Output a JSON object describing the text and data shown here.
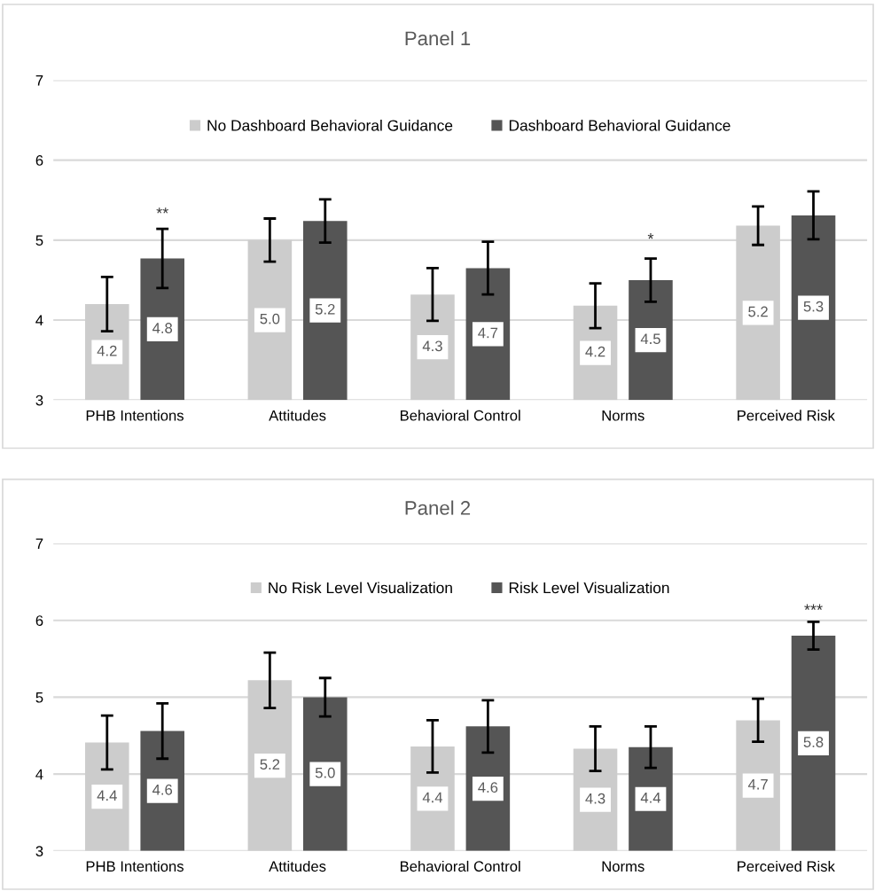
{
  "chart_data": [
    {
      "type": "bar",
      "title": "Panel 1",
      "categories": [
        "PHB Intentions",
        "Attitudes",
        "Behavioral Control",
        "Norms",
        "Perceived Risk"
      ],
      "series": [
        {
          "name": "No Dashboard Behavioral Guidance",
          "color": "#cccccc",
          "values": [
            4.2,
            5.0,
            4.32,
            4.18,
            5.18
          ],
          "errors": [
            0.34,
            0.27,
            0.33,
            0.28,
            0.24
          ],
          "value_labels": [
            "4.2",
            "5.0",
            "4.3",
            "4.2",
            "5.2"
          ]
        },
        {
          "name": "Dashboard Behavioral Guidance",
          "color": "#555555",
          "values": [
            4.77,
            5.24,
            4.65,
            4.5,
            5.31
          ],
          "errors": [
            0.37,
            0.27,
            0.33,
            0.27,
            0.3
          ],
          "value_labels": [
            "4.8",
            "5.2",
            "4.7",
            "4.5",
            "5.3"
          ]
        }
      ],
      "ylim": [
        3,
        7
      ],
      "yticks": [
        3,
        4,
        5,
        6,
        7
      ],
      "grid": "y",
      "legend": "top",
      "annotations": [
        "**",
        "*"
      ]
    },
    {
      "type": "bar",
      "title": "Panel 2",
      "categories": [
        "PHB Intentions",
        "Attitudes",
        "Behavioral Control",
        "Norms",
        "Perceived Risk"
      ],
      "series": [
        {
          "name": "No Risk Level Visualization",
          "color": "#cccccc",
          "values": [
            4.41,
            5.22,
            4.36,
            4.33,
            4.7
          ],
          "errors": [
            0.35,
            0.36,
            0.34,
            0.29,
            0.28
          ],
          "value_labels": [
            "4.4",
            "5.2",
            "4.4",
            "4.3",
            "4.7"
          ]
        },
        {
          "name": "Risk Level Visualization",
          "color": "#555555",
          "values": [
            4.56,
            5.0,
            4.62,
            4.35,
            5.8
          ],
          "errors": [
            0.36,
            0.25,
            0.34,
            0.27,
            0.18
          ],
          "value_labels": [
            "4.6",
            "5.0",
            "4.6",
            "4.4",
            "5.8"
          ]
        }
      ],
      "ylim": [
        3,
        7
      ],
      "yticks": [
        3,
        4,
        5,
        6,
        7
      ],
      "grid": "y",
      "legend": "top",
      "annotations": [
        "***"
      ]
    }
  ]
}
